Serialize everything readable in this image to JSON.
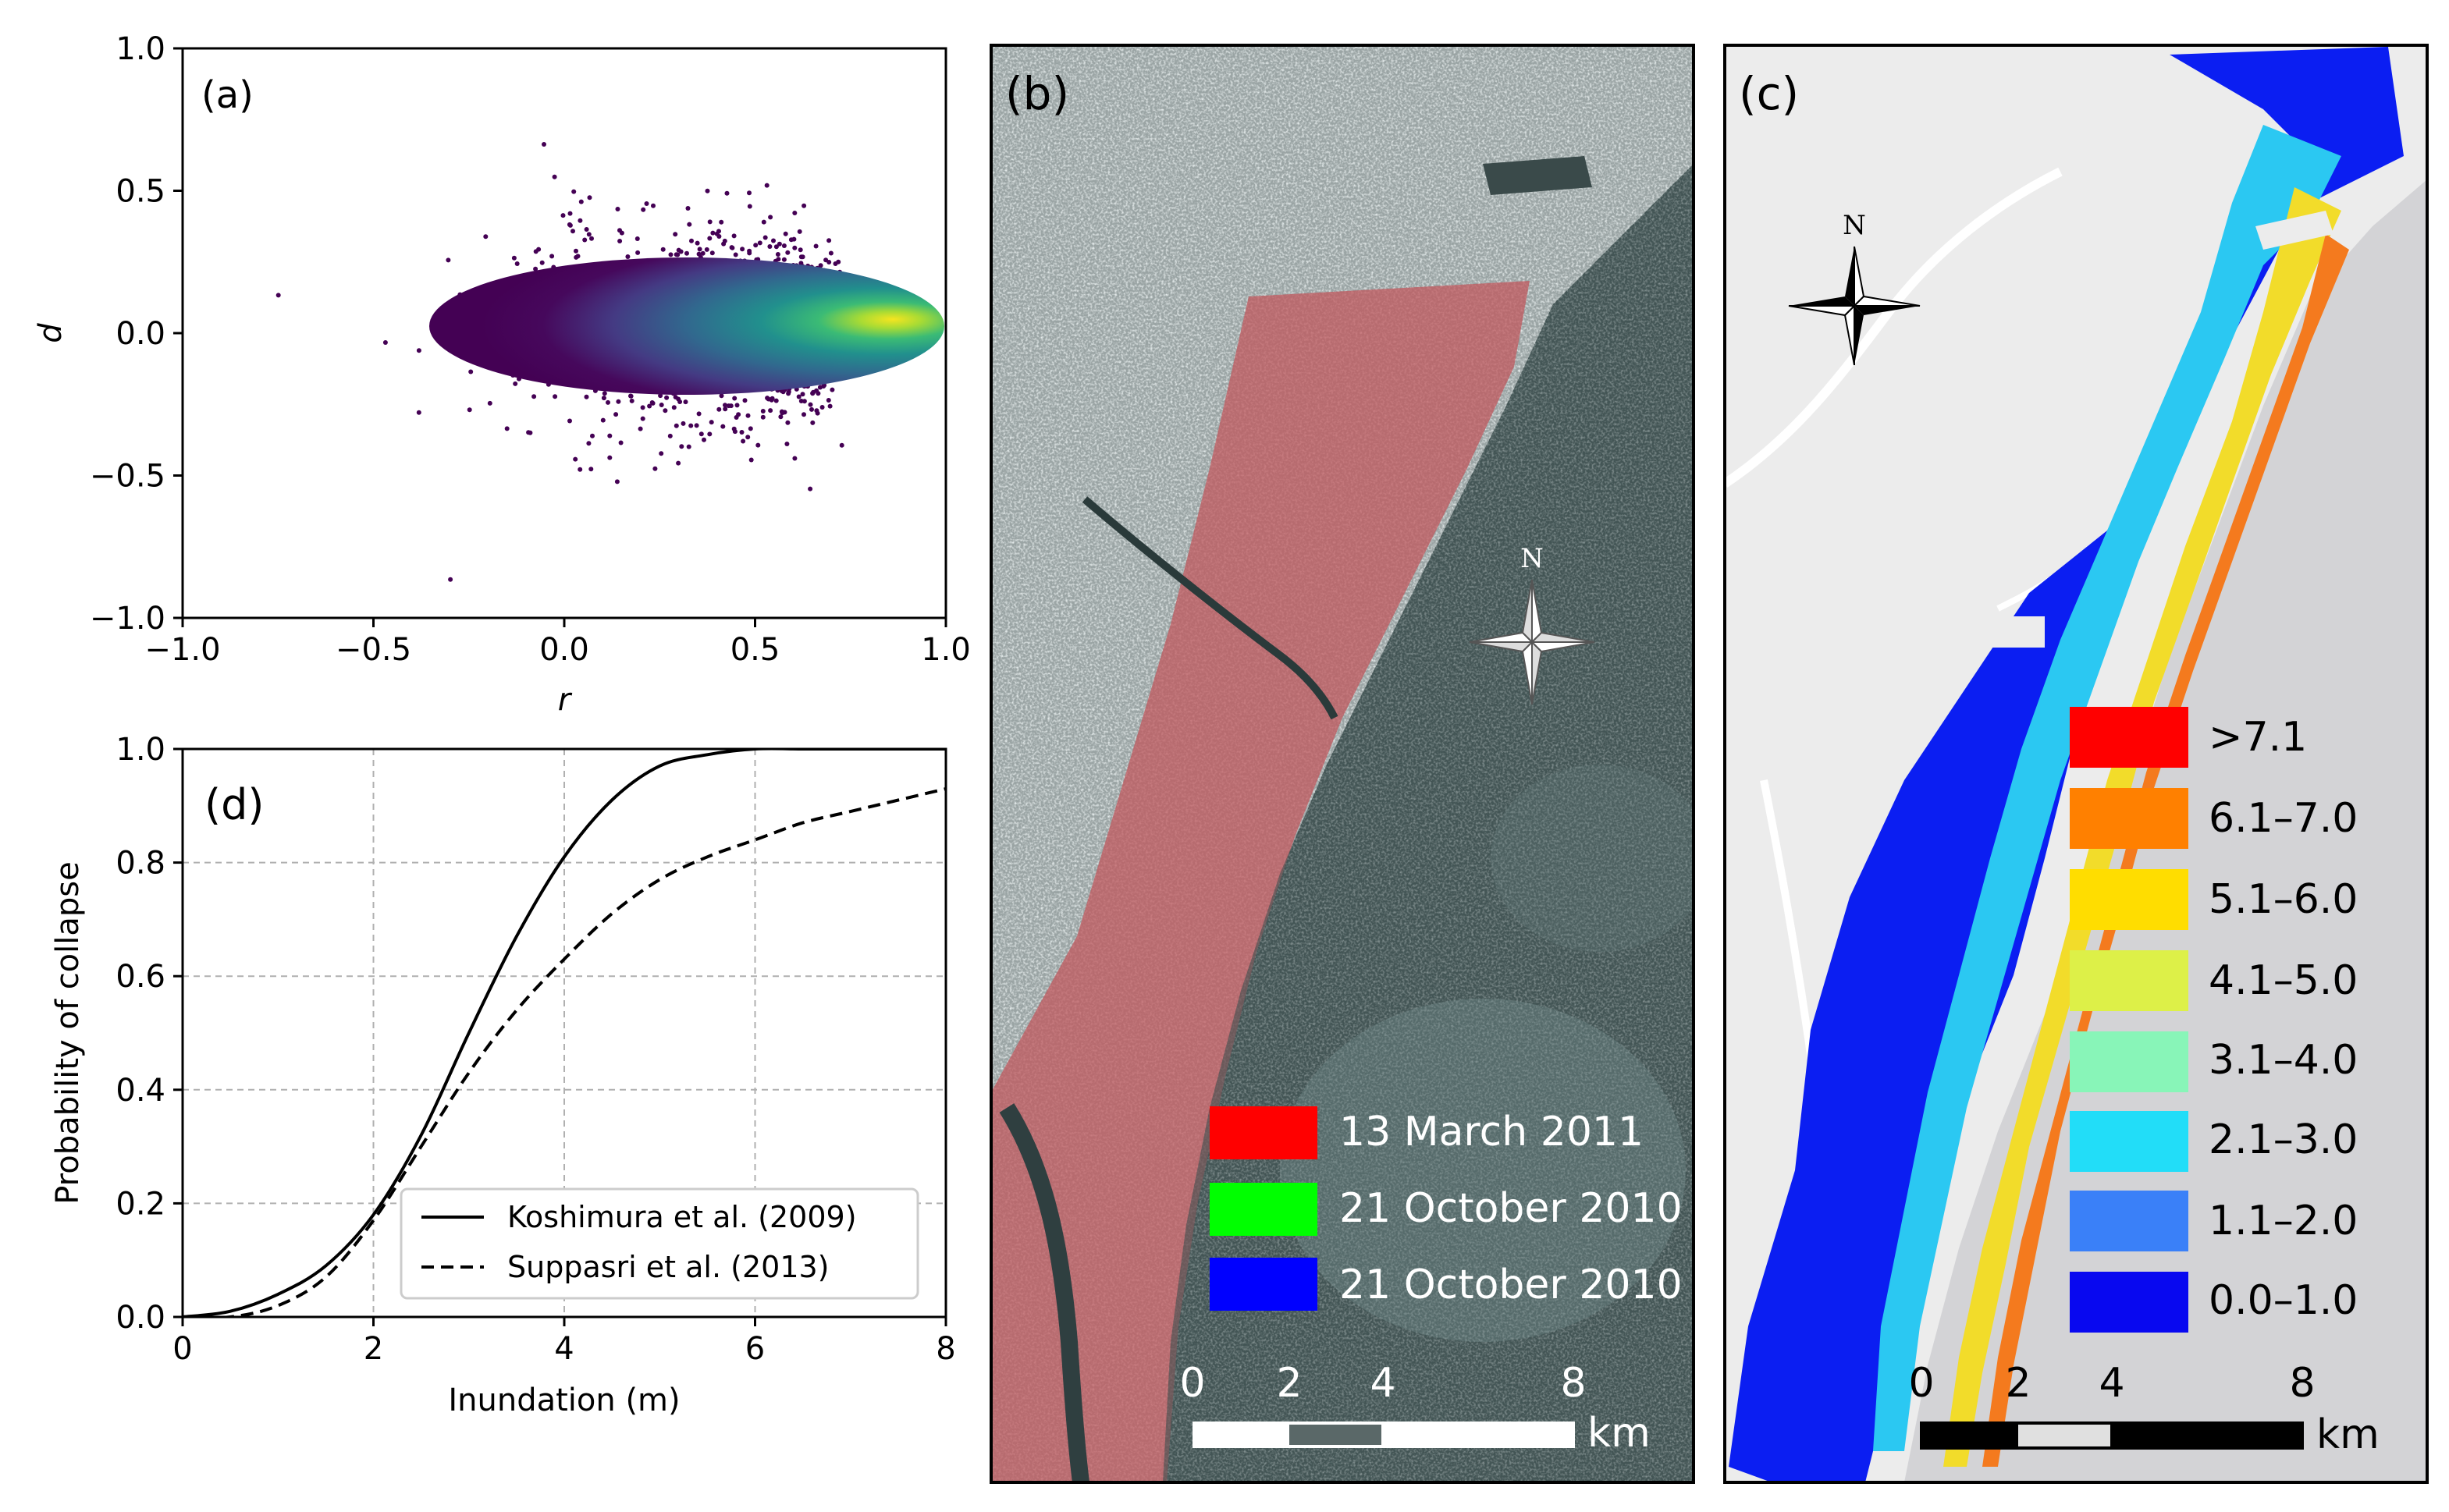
{
  "panels": {
    "a": {
      "label": "(a)"
    },
    "b": {
      "label": "(b)"
    },
    "c": {
      "label": "(c)"
    },
    "d": {
      "label": "(d)"
    }
  },
  "chart_data": [
    {
      "panel": "(a)",
      "type": "scatter",
      "title": "",
      "xlabel": "r",
      "ylabel": "d",
      "xlim": [
        -1.0,
        1.0
      ],
      "ylim": [
        -1.0,
        1.0
      ],
      "xticks": [
        -1.0,
        -0.5,
        0.0,
        0.5,
        1.0
      ],
      "yticks": [
        -1.0,
        -0.5,
        0.0,
        0.5,
        1.0
      ],
      "xtick_labels": [
        "−1.0",
        "−0.5",
        "0.0",
        "0.5",
        "1.0"
      ],
      "ytick_labels": [
        "−1.0",
        "−0.5",
        "0.0",
        "0.5",
        "1.0"
      ],
      "density": {
        "colormap": "viridis",
        "peak": [
          0.73,
          0.05
        ],
        "x_range": [
          -0.75,
          0.97
        ],
        "y_range": [
          -0.9,
          0.7
        ]
      },
      "grid": false
    },
    {
      "panel": "(d)",
      "type": "line",
      "xlabel": "Inundation (m)",
      "ylabel": "Probability of collapse",
      "xlim": [
        0,
        8
      ],
      "ylim": [
        0.0,
        1.0
      ],
      "xticks": [
        0,
        2,
        4,
        6,
        8
      ],
      "yticks": [
        0.0,
        0.2,
        0.4,
        0.6,
        0.8,
        1.0
      ],
      "xtick_labels": [
        "0",
        "2",
        "4",
        "6",
        "8"
      ],
      "ytick_labels": [
        "0.0",
        "0.2",
        "0.4",
        "0.6",
        "0.8",
        "1.0"
      ],
      "grid": true,
      "legend_position": "bottom-right",
      "x": [
        0,
        0.5,
        1,
        1.5,
        2,
        2.5,
        3,
        3.5,
        4,
        4.5,
        5,
        5.5,
        6,
        6.5,
        7,
        7.5,
        8
      ],
      "series": [
        {
          "name": "Koshimura et al. (2009)",
          "style": "solid",
          "values": [
            0.0,
            0.01,
            0.04,
            0.09,
            0.18,
            0.32,
            0.5,
            0.67,
            0.81,
            0.91,
            0.97,
            0.99,
            1.0,
            1.0,
            1.0,
            1.0,
            1.0
          ]
        },
        {
          "name": "Suppasri et al. (2013)",
          "style": "dashed",
          "values": [
            0.0,
            0.0,
            0.02,
            0.07,
            0.17,
            0.3,
            0.43,
            0.54,
            0.63,
            0.71,
            0.77,
            0.81,
            0.84,
            0.87,
            0.89,
            0.91,
            0.93
          ]
        }
      ]
    },
    {
      "panel": "(b)",
      "type": "map",
      "north_label": "N",
      "legend": [
        {
          "label": "13 March 2011",
          "color": "#ff0000"
        },
        {
          "label": "21 October 2010",
          "color": "#00ff00"
        },
        {
          "label": "21 October 2010",
          "color": "#0000ff"
        }
      ],
      "scalebar": {
        "ticks": [
          "0",
          "2",
          "4",
          "8"
        ],
        "unit": "km"
      }
    },
    {
      "panel": "(c)",
      "type": "map",
      "north_label": "N",
      "legend": [
        {
          "label": ">7.1",
          "color": "#ff0000"
        },
        {
          "label": "6.1–7.0",
          "color": "#ff8000"
        },
        {
          "label": "5.1–6.0",
          "color": "#ffdd00"
        },
        {
          "label": "4.1–5.0",
          "color": "#ddf048"
        },
        {
          "label": "3.1–4.0",
          "color": "#88f5b8"
        },
        {
          "label": "2.1–3.0",
          "color": "#22ddf8"
        },
        {
          "label": "1.1–2.0",
          "color": "#3a80f8"
        },
        {
          "label": "0.0–1.0",
          "color": "#0808f0"
        }
      ],
      "scalebar": {
        "ticks": [
          "0",
          "2",
          "4",
          "8"
        ],
        "unit": "km"
      }
    }
  ]
}
